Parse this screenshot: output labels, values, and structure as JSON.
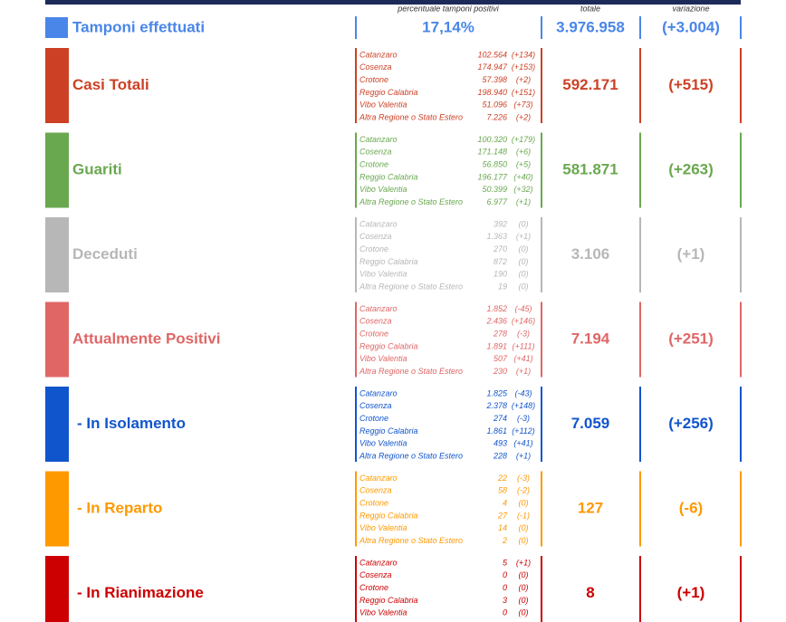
{
  "header": {
    "columns": [
      "percentuale tamponi positivi",
      "totale",
      "variazione"
    ]
  },
  "tamponi": {
    "label": "Tamponi effettuati",
    "percent": "17,14%",
    "total": "3.976.958",
    "change": "(+3.004)"
  },
  "sections": [
    {
      "label": "Casi Totali",
      "total": "592.171",
      "change": "(+515)",
      "rows": [
        [
          "Catanzaro",
          "102.564",
          "(+134)"
        ],
        [
          "Cosenza",
          "174.947",
          "(+153)"
        ],
        [
          "Crotone",
          "57.398",
          "(+2)"
        ],
        [
          "Reggio Calabria",
          "198.940",
          "(+151)"
        ],
        [
          "Vibo Valentia",
          "51.096",
          "(+73)"
        ],
        [
          "Altra Regione o Stato Estero",
          "7.226",
          "(+2)"
        ]
      ]
    },
    {
      "label": "Guariti",
      "total": "581.871",
      "change": "(+263)",
      "rows": [
        [
          "Catanzaro",
          "100.320",
          "(+179)"
        ],
        [
          "Cosenza",
          "171.148",
          "(+6)"
        ],
        [
          "Crotone",
          "56.850",
          "(+5)"
        ],
        [
          "Reggio Calabria",
          "196.177",
          "(+40)"
        ],
        [
          "Vibo Valentia",
          "50.399",
          "(+32)"
        ],
        [
          "Altra Regione o Stato Estero",
          "6.977",
          "(+1)"
        ]
      ]
    },
    {
      "label": "Deceduti",
      "total": "3.106",
      "change": "(+1)",
      "rows": [
        [
          "Catanzaro",
          "392",
          "(0)"
        ],
        [
          "Cosenza",
          "1.363",
          "(+1)"
        ],
        [
          "Crotone",
          "270",
          "(0)"
        ],
        [
          "Reggio Calabria",
          "872",
          "(0)"
        ],
        [
          "Vibo Valentia",
          "190",
          "(0)"
        ],
        [
          "Altra Regione o Stato Estero",
          "19",
          "(0)"
        ]
      ]
    },
    {
      "label": "Attualmente Positivi",
      "total": "7.194",
      "change": "(+251)",
      "rows": [
        [
          "Catanzaro",
          "1.852",
          "(-45)"
        ],
        [
          "Cosenza",
          "2.436",
          "(+146)"
        ],
        [
          "Crotone",
          "278",
          "(-3)"
        ],
        [
          "Reggio Calabria",
          "1.891",
          "(+111)"
        ],
        [
          "Vibo Valentia",
          "507",
          "(+41)"
        ],
        [
          "Altra Regione o Stato Estero",
          "230",
          "(+1)"
        ]
      ]
    },
    {
      "label": "- In Isolamento",
      "total": "7.059",
      "change": "(+256)",
      "rows": [
        [
          "Catanzaro",
          "1.825",
          "(-43)"
        ],
        [
          "Cosenza",
          "2.378",
          "(+148)"
        ],
        [
          "Crotone",
          "274",
          "(-3)"
        ],
        [
          "Reggio Calabria",
          "1.861",
          "(+112)"
        ],
        [
          "Vibo Valentia",
          "493",
          "(+41)"
        ],
        [
          "Altra Regione o Stato Estero",
          "228",
          "(+1)"
        ]
      ]
    },
    {
      "label": "- In Reparto",
      "total": "127",
      "change": "(-6)",
      "rows": [
        [
          "Catanzaro",
          "22",
          "(-3)"
        ],
        [
          "Cosenza",
          "58",
          "(-2)"
        ],
        [
          "Crotone",
          "4",
          "(0)"
        ],
        [
          "Reggio Calabria",
          "27",
          "(-1)"
        ],
        [
          "Vibo Valentia",
          "14",
          "(0)"
        ],
        [
          "Altra Regione o Stato Estero",
          "2",
          "(0)"
        ]
      ]
    },
    {
      "label": "- In Rianimazione",
      "total": "8",
      "change": "(+1)",
      "rows": [
        [
          "Catanzaro",
          "5",
          "(+1)"
        ],
        [
          "Cosenza",
          "0",
          "(0)"
        ],
        [
          "Crotone",
          "0",
          "(0)"
        ],
        [
          "Reggio Calabria",
          "3",
          "(0)"
        ],
        [
          "Vibo Valentia",
          "0",
          "(0)"
        ]
      ]
    }
  ]
}
